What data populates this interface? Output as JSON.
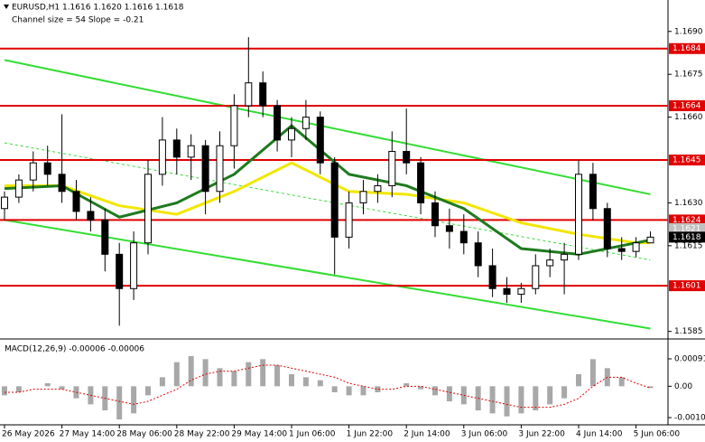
{
  "chart_data": {
    "type": "candlestick",
    "title": "EURUSD,H1  1.1616 1.1620 1.1616 1.1618",
    "subtitle": "Channel size = 54 Slope = -0.21",
    "categories": [
      "26 May 2026",
      null,
      null,
      null,
      "27 May 14:00",
      null,
      null,
      null,
      "28 May 06:00",
      null,
      null,
      null,
      "28 May 22:00",
      null,
      null,
      null,
      "29 May 14:00",
      null,
      null,
      null,
      "1 Jun 06:00",
      null,
      null,
      null,
      "1 Jun 22:00",
      null,
      null,
      null,
      "2 Jun 14:00",
      null,
      null,
      null,
      "3 Jun 06:00",
      null,
      null,
      null,
      "3 Jun 22:00",
      null,
      null,
      null,
      "4 Jun 14:00",
      null,
      null,
      null,
      "5 Jun 06:00",
      null
    ],
    "open": [
      1.1628,
      1.1632,
      1.1638,
      1.1644,
      1.164,
      1.1634,
      1.1627,
      1.1624,
      1.1612,
      1.16,
      1.1616,
      1.164,
      1.1652,
      1.1646,
      1.165,
      1.1634,
      1.165,
      1.1664,
      1.1672,
      1.1664,
      1.1652,
      1.1656,
      1.166,
      1.1644,
      1.1618,
      1.163,
      1.1634,
      1.1636,
      1.1648,
      1.1644,
      1.163,
      1.1622,
      1.162,
      1.1616,
      1.1608,
      1.16,
      1.1598,
      1.16,
      1.1608,
      1.161,
      1.1612,
      1.164,
      1.1628,
      1.1614,
      1.1613,
      1.1616
    ],
    "high": [
      1.1634,
      1.164,
      1.1648,
      1.165,
      1.1661,
      1.1638,
      1.1632,
      1.1628,
      1.1616,
      1.162,
      1.1645,
      1.166,
      1.1656,
      1.1654,
      1.1652,
      1.1655,
      1.1668,
      1.1688,
      1.1676,
      1.1666,
      1.166,
      1.1666,
      1.1662,
      1.1646,
      1.1634,
      1.1638,
      1.164,
      1.1655,
      1.1663,
      1.1646,
      1.1634,
      1.1628,
      1.1626,
      1.162,
      1.1614,
      1.1604,
      1.1602,
      1.1612,
      1.1614,
      1.1616,
      1.1645,
      1.1644,
      1.163,
      1.1618,
      1.1618,
      1.162
    ],
    "low": [
      1.1624,
      1.163,
      1.1634,
      1.1636,
      1.163,
      1.1624,
      1.162,
      1.1606,
      1.1587,
      1.1596,
      1.1612,
      1.1636,
      1.164,
      1.1638,
      1.1626,
      1.163,
      1.1642,
      1.166,
      1.166,
      1.1648,
      1.1646,
      1.1652,
      1.164,
      1.1605,
      1.1614,
      1.1626,
      1.163,
      1.1632,
      1.164,
      1.1626,
      1.1618,
      1.1614,
      1.1612,
      1.1604,
      1.1597,
      1.1595,
      1.1595,
      1.1598,
      1.1604,
      1.1598,
      1.161,
      1.1624,
      1.1611,
      1.161,
      1.1611,
      1.1616
    ],
    "close": [
      1.1632,
      1.1638,
      1.1644,
      1.164,
      1.1634,
      1.1627,
      1.1624,
      1.1612,
      1.16,
      1.1616,
      1.164,
      1.1652,
      1.1646,
      1.165,
      1.1634,
      1.165,
      1.1664,
      1.1672,
      1.1664,
      1.1652,
      1.1656,
      1.166,
      1.1644,
      1.1618,
      1.163,
      1.1634,
      1.1636,
      1.1648,
      1.1644,
      1.163,
      1.1622,
      1.162,
      1.1616,
      1.1608,
      1.16,
      1.1598,
      1.16,
      1.1608,
      1.161,
      1.1612,
      1.164,
      1.1628,
      1.1614,
      1.1613,
      1.1616,
      1.1618
    ],
    "ylim": [
      1.1583,
      1.1701
    ],
    "yticks": [
      {
        "value": 1.169,
        "label": "1.1690"
      },
      {
        "value": 1.1675,
        "label": "1.1675"
      },
      {
        "value": 1.166,
        "label": "1.1660"
      },
      {
        "value": 1.163,
        "label": "1.1630"
      },
      {
        "value": 1.1615,
        "label": "1.1615"
      },
      {
        "value": 1.1585,
        "label": "1.1585"
      }
    ],
    "levels": {
      "values": [
        1.1684,
        1.1664,
        1.1645,
        1.1624,
        1.1601
      ],
      "value_labels": [
        "1.1684",
        "1.1664",
        "1.1645",
        "1.1624",
        "1.1601"
      ],
      "color": "#e00000"
    },
    "prices": {
      "values": [
        1.1621,
        1.1618
      ],
      "value_labels": [
        "1.1621",
        "1.1618"
      ],
      "colors": [
        "#c0c0c0",
        "#000000"
      ]
    },
    "moving_averages": [
      {
        "color": "#f2e600",
        "x": [
          0,
          4,
          8,
          12,
          16,
          20,
          24,
          28,
          32,
          36,
          40,
          44,
          45
        ],
        "values": [
          1.1636,
          1.1636,
          1.1629,
          1.1626,
          1.1634,
          1.1644,
          1.1634,
          1.1633,
          1.163,
          1.1623,
          1.1619,
          1.1616,
          1.1616
        ]
      },
      {
        "color": "#1e7a1e",
        "x": [
          0,
          4,
          8,
          12,
          16,
          20,
          24,
          28,
          32,
          36,
          40,
          44,
          45
        ],
        "values": [
          1.1635,
          1.1636,
          1.1625,
          1.163,
          1.164,
          1.1657,
          1.164,
          1.1636,
          1.1628,
          1.1614,
          1.1612,
          1.1616,
          1.1617
        ]
      }
    ],
    "channel": {
      "x": [
        0,
        45
      ],
      "upper": [
        1.168,
        1.1633
      ],
      "middle": [
        1.1651,
        1.161
      ],
      "lower": [
        1.1624,
        1.1586
      ],
      "color": "#33dd33"
    },
    "macd": {
      "title": "MACD(12,26,9) -0.00006 -0.00006",
      "histogram": [
        -0.0003,
        -0.0002,
        0.0,
        0.0001,
        -0.0001,
        -0.0004,
        -0.0006,
        -0.0008,
        -0.0011,
        -0.0009,
        -0.0003,
        0.0003,
        0.0008,
        0.001,
        0.0009,
        0.0006,
        0.0005,
        0.0008,
        0.0009,
        0.0007,
        0.0004,
        0.0003,
        0.0002,
        -0.0002,
        -0.0003,
        -0.0003,
        -0.0002,
        0.0,
        0.0001,
        -0.0001,
        -0.0003,
        -0.0005,
        -0.0006,
        -0.0008,
        -0.0009,
        -0.001,
        -0.0009,
        -0.0008,
        -0.0006,
        -0.0004,
        0.0004,
        0.0009,
        0.0006,
        0.0003,
        0.0,
        -6e-05
      ],
      "signal": [
        -0.0002,
        -0.0002,
        -0.0001,
        -0.0001,
        -0.0001,
        -0.0002,
        -0.0003,
        -0.0004,
        -0.0005,
        -0.0006,
        -0.0005,
        -0.0003,
        -0.0001,
        0.0002,
        0.0004,
        0.0005,
        0.0005,
        0.0006,
        0.0007,
        0.0007,
        0.0006,
        0.0005,
        0.0004,
        0.0003,
        0.0001,
        0.0,
        -0.0001,
        -0.0001,
        0.0,
        0.0,
        -0.0001,
        -0.0002,
        -0.0003,
        -0.0004,
        -0.0005,
        -0.0006,
        -0.0007,
        -0.0007,
        -0.0007,
        -0.0006,
        -0.0004,
        0.0,
        0.0003,
        0.0003,
        0.0001,
        -6e-05
      ],
      "ylim": [
        -0.00128,
        0.00148
      ],
      "yticks": [
        0.00091,
        {
          "value": 0,
          "label": "0.00"
        },
        -0.00104
      ],
      "color": "#a8a8a8",
      "signal_color": "#e00000"
    }
  }
}
